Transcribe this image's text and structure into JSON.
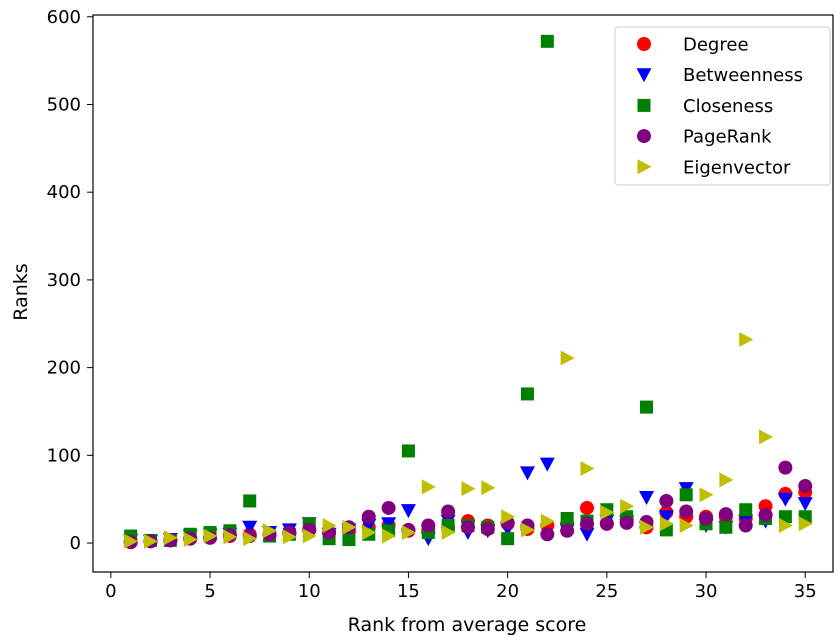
{
  "chart_data": {
    "type": "scatter",
    "title": "",
    "xlabel": "Rank from average score",
    "ylabel": "Ranks",
    "xlim": [
      -0.9,
      36.4
    ],
    "ylim": [
      -33,
      602
    ],
    "xticks": [
      0,
      5,
      10,
      15,
      20,
      25,
      30,
      35
    ],
    "yticks": [
      0,
      100,
      200,
      300,
      400,
      500,
      600
    ],
    "grid": false,
    "legend_position": "top-right",
    "series": [
      {
        "name": "Degree",
        "color": "#ff0000",
        "marker": "circle",
        "x": [
          1,
          2,
          3,
          4,
          5,
          6,
          7,
          8,
          9,
          10,
          11,
          12,
          13,
          14,
          15,
          16,
          17,
          18,
          19,
          20,
          21,
          22,
          23,
          24,
          25,
          26,
          27,
          28,
          29,
          30,
          31,
          32,
          33,
          34,
          35
        ],
        "y": [
          1,
          2,
          3,
          5,
          6,
          8,
          10,
          9,
          11,
          15,
          12,
          13,
          18,
          20,
          14,
          15,
          18,
          25,
          20,
          22,
          16,
          20,
          22,
          40,
          22,
          27,
          18,
          35,
          30,
          30,
          30,
          28,
          42,
          56,
          58
        ]
      },
      {
        "name": "Betweenness",
        "color": "#0000ff",
        "marker": "triangle-down",
        "x": [
          1,
          2,
          3,
          4,
          5,
          6,
          7,
          8,
          9,
          10,
          11,
          12,
          13,
          14,
          15,
          16,
          17,
          18,
          19,
          20,
          21,
          22,
          23,
          24,
          25,
          26,
          27,
          28,
          29,
          30,
          31,
          32,
          33,
          34,
          35
        ],
        "y": [
          3,
          2,
          4,
          8,
          9,
          10,
          18,
          12,
          15,
          22,
          10,
          15,
          20,
          22,
          37,
          5,
          25,
          12,
          14,
          16,
          80,
          90,
          15,
          10,
          25,
          24,
          52,
          30,
          62,
          20,
          18,
          25,
          25,
          50,
          45
        ]
      },
      {
        "name": "Closeness",
        "color": "#008000",
        "marker": "square",
        "x": [
          1,
          2,
          3,
          4,
          5,
          6,
          7,
          8,
          9,
          10,
          11,
          12,
          13,
          14,
          15,
          16,
          17,
          18,
          19,
          20,
          21,
          22,
          23,
          24,
          25,
          26,
          27,
          28,
          29,
          30,
          31,
          32,
          33,
          34,
          35
        ],
        "y": [
          8,
          3,
          3,
          10,
          12,
          14,
          48,
          8,
          10,
          22,
          5,
          4,
          10,
          14,
          105,
          12,
          20,
          20,
          18,
          5,
          170,
          572,
          28,
          25,
          38,
          30,
          155,
          15,
          55,
          22,
          18,
          38,
          28,
          30,
          30
        ]
      },
      {
        "name": "PageRank",
        "color": "#800080",
        "marker": "circle",
        "x": [
          1,
          2,
          3,
          4,
          5,
          6,
          7,
          8,
          9,
          10,
          11,
          12,
          13,
          14,
          15,
          16,
          17,
          18,
          19,
          20,
          21,
          22,
          23,
          24,
          25,
          26,
          27,
          28,
          29,
          30,
          31,
          32,
          33,
          34,
          35
        ],
        "y": [
          1,
          2,
          3,
          5,
          6,
          9,
          8,
          10,
          12,
          15,
          12,
          18,
          30,
          40,
          15,
          20,
          36,
          18,
          16,
          23,
          20,
          10,
          14,
          22,
          22,
          23,
          24,
          48,
          36,
          28,
          33,
          20,
          32,
          86,
          65
        ]
      },
      {
        "name": "Eigenvector",
        "color": "#bfbf00",
        "marker": "triangle-right",
        "x": [
          1,
          2,
          3,
          4,
          5,
          6,
          7,
          8,
          9,
          10,
          11,
          12,
          13,
          14,
          15,
          16,
          17,
          18,
          19,
          20,
          21,
          22,
          23,
          24,
          25,
          26,
          27,
          28,
          29,
          30,
          31,
          32,
          33,
          34,
          35
        ],
        "y": [
          2,
          2,
          6,
          4,
          8,
          7,
          5,
          14,
          7,
          8,
          20,
          18,
          12,
          8,
          12,
          64,
          12,
          62,
          63,
          30,
          15,
          25,
          211,
          85,
          35,
          42,
          18,
          22,
          20,
          55,
          72,
          232,
          121,
          20,
          22
        ]
      }
    ]
  }
}
